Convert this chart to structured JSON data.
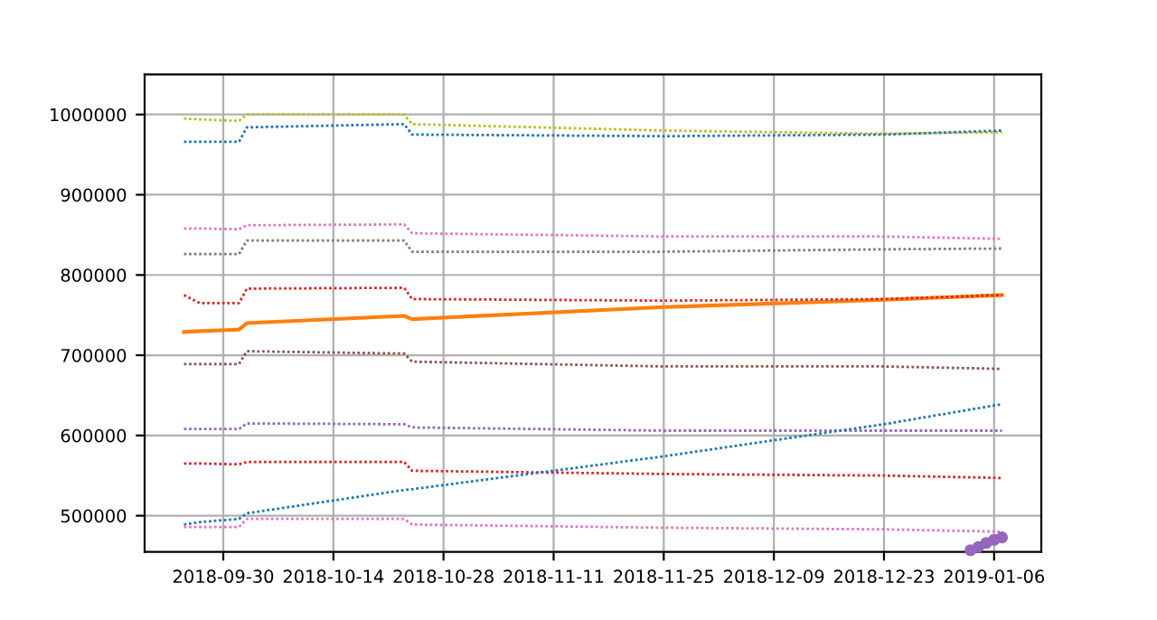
{
  "chart_data": {
    "type": "line",
    "line_style": "dotted",
    "grid": true,
    "legend": false,
    "x": [
      "2018-09-25",
      "2018-09-27",
      "2018-10-02",
      "2018-10-03",
      "2018-10-23",
      "2018-10-24",
      "2018-11-25",
      "2018-12-23",
      "2019-01-07"
    ],
    "xlim": [
      "2018-09-20",
      "2019-01-12"
    ],
    "xticks": [
      "2018-09-30",
      "2018-10-14",
      "2018-10-28",
      "2018-11-11",
      "2018-11-25",
      "2018-12-09",
      "2018-12-23",
      "2019-01-06"
    ],
    "ylim": [
      455000,
      1050000
    ],
    "yticks": [
      500000,
      600000,
      700000,
      800000,
      900000,
      1000000
    ],
    "series": [
      {
        "color": "#bcbd22",
        "values": [
          995000,
          994000,
          992000,
          1000000,
          1000000,
          988000,
          980000,
          976000,
          978000
        ]
      },
      {
        "color": "#1f77b4",
        "values": [
          966000,
          966000,
          966000,
          984000,
          988000,
          975000,
          973000,
          975000,
          980000
        ]
      },
      {
        "color": "#e377c2",
        "values": [
          858000,
          858000,
          857000,
          862000,
          863000,
          852000,
          848000,
          848000,
          845000
        ]
      },
      {
        "color": "#7f7f7f",
        "values": [
          826000,
          826000,
          826000,
          843000,
          843000,
          829000,
          829000,
          832000,
          833000
        ]
      },
      {
        "color": "#d62728",
        "values": [
          775000,
          765000,
          765000,
          783000,
          784000,
          770000,
          768000,
          770000,
          775000
        ]
      },
      {
        "color": "#ff7f0e",
        "line_style": "solid",
        "values": [
          729000,
          730000,
          732000,
          740000,
          749000,
          745000,
          760000,
          769000,
          775000
        ]
      },
      {
        "color": "#8c564b",
        "values": [
          689000,
          689000,
          689000,
          705000,
          702000,
          692000,
          686000,
          686000,
          683000
        ]
      },
      {
        "color": "#9467bd",
        "values": [
          608000,
          608000,
          608000,
          615000,
          614000,
          610000,
          606000,
          606000,
          606000
        ]
      },
      {
        "color": "#d62728",
        "values": [
          565000,
          565000,
          564000,
          567000,
          567000,
          556000,
          552000,
          550000,
          547000
        ]
      },
      {
        "color": "#1f77b4",
        "values": [
          489000,
          492000,
          496000,
          503000,
          532000,
          533000,
          574000,
          614000,
          639000
        ]
      },
      {
        "color": "#e377c2",
        "values": [
          486000,
          486000,
          486000,
          496000,
          496000,
          489000,
          485000,
          483000,
          480000
        ]
      },
      {
        "type": "scatter",
        "color": "#9467bd",
        "marker": "circle",
        "x": [
          "2019-01-03",
          "2019-01-04",
          "2019-01-05",
          "2019-01-06",
          "2019-01-07"
        ],
        "values": [
          457000,
          461000,
          466000,
          470000,
          473000
        ]
      }
    ]
  }
}
